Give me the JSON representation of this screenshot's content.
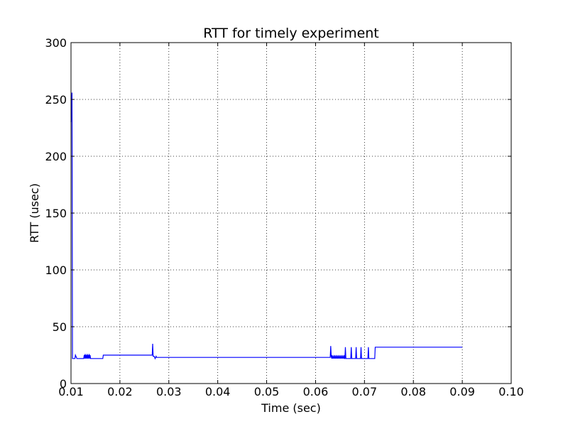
{
  "chart_data": {
    "type": "line",
    "title": "RTT for timely experiment",
    "xlabel": "Time (sec)",
    "ylabel": "RTT (usec)",
    "xlim": [
      0.01,
      0.1
    ],
    "ylim": [
      0,
      300
    ],
    "xticks": [
      0.01,
      0.02,
      0.03,
      0.04,
      0.05,
      0.06,
      0.07,
      0.08,
      0.09,
      0.1
    ],
    "xtick_labels": [
      "0.01",
      "0.02",
      "0.03",
      "0.04",
      "0.05",
      "0.06",
      "0.07",
      "0.08",
      "0.09",
      "0.10"
    ],
    "yticks": [
      0,
      50,
      100,
      150,
      200,
      250,
      300
    ],
    "ytick_labels": [
      "0",
      "50",
      "100",
      "150",
      "200",
      "250",
      "300"
    ],
    "grid": true,
    "line_color": "#0000ff",
    "series": [
      {
        "x": [
          0.01,
          0.0102,
          0.01025,
          0.0103,
          0.0104,
          0.0108,
          0.0109,
          0.0112,
          0.0113,
          0.0126,
          0.0127,
          0.0128,
          0.0129,
          0.013,
          0.0131,
          0.0132,
          0.0133,
          0.0134,
          0.0135,
          0.0136,
          0.0137,
          0.0138,
          0.0139,
          0.014,
          0.0141,
          0.0165,
          0.0166,
          0.0266,
          0.0267,
          0.0268,
          0.027,
          0.0272,
          0.0274,
          0.0275,
          0.0276,
          0.0278,
          0.063,
          0.0631,
          0.0632,
          0.0633,
          0.0634,
          0.0635,
          0.0636,
          0.0637,
          0.0638,
          0.0639,
          0.064,
          0.0641,
          0.0642,
          0.0643,
          0.0644,
          0.0645,
          0.0646,
          0.0647,
          0.0648,
          0.0649,
          0.065,
          0.0651,
          0.0652,
          0.0653,
          0.0654,
          0.0655,
          0.0656,
          0.0657,
          0.0658,
          0.0659,
          0.066,
          0.0661,
          0.0662,
          0.0663,
          0.0664,
          0.0672,
          0.0673,
          0.0674,
          0.0682,
          0.0683,
          0.0684,
          0.0692,
          0.0693,
          0.0694,
          0.07,
          0.0706,
          0.0707,
          0.0708,
          0.0709,
          0.071,
          0.072,
          0.0721,
          0.0722,
          0.09
        ],
        "y": [
          230,
          256,
          150,
          22,
          22,
          22,
          25,
          22,
          22,
          22,
          25,
          22,
          26,
          22,
          25,
          22,
          26,
          22,
          25,
          22,
          26,
          22,
          25,
          22,
          22,
          22,
          25,
          25,
          35,
          24,
          24,
          22,
          24,
          23,
          23,
          23,
          23,
          33,
          24,
          22,
          25,
          22,
          24,
          22,
          25,
          22,
          24,
          22,
          25,
          22,
          24,
          22,
          25,
          22,
          24,
          22,
          25,
          22,
          24,
          22,
          25,
          22,
          24,
          22,
          25,
          22,
          22,
          32,
          22,
          22,
          22,
          22,
          32,
          22,
          22,
          32,
          22,
          22,
          32,
          22,
          22,
          22,
          22,
          32,
          22,
          22,
          22,
          22,
          32,
          32
        ]
      }
    ]
  }
}
